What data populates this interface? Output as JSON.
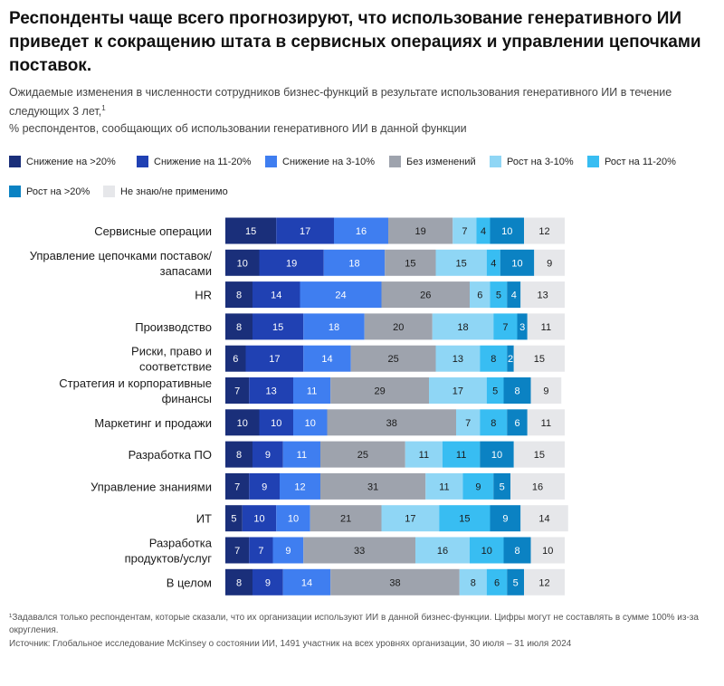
{
  "header": {
    "title": "Респонденты чаще всего прогнозируют, что использование генеративного ИИ приведет к сокращению штата в сервисных операциях и управлении цепочками поставок.",
    "subtitle": "Ожидаемые изменения в численности сотрудников бизнес-функций в результате использования генеративного ИИ в течение следующих 3 лет,",
    "subtitle_mark": "1",
    "subtitle2": "% респондентов, сообщающих об использовании генеративного ИИ в данной функции"
  },
  "footer": {
    "footnote": "¹Задавался только респондентам, которые сказали, что их организации используют ИИ в данной бизнес-функции. Цифры могут не составлять в сумме 100% из-за округления.",
    "source": "Источник: Глобальное исследование McKinsey о состоянии ИИ, 1491 участник на всех уровнях организации, 30 июля – 31 июля 2024"
  },
  "chart_data": {
    "type": "bar",
    "orientation": "horizontal",
    "stacked": true,
    "legend_position": "top",
    "categories": [
      "Сервисные операции",
      "Управление цепочками поставок/ запасами",
      "HR",
      "Производство",
      "Риски, право и соответствие",
      "Стратегия и корпоративные финансы",
      "Маркетинг и продажи",
      "Разработка ПО",
      "Управление знаниями",
      "ИТ",
      "Разработка продуктов/услуг",
      "В целом"
    ],
    "series": [
      {
        "name": "Снижение на >20%",
        "color": "#1a2f7a",
        "label_color": "#ffffff",
        "values": [
          15,
          10,
          8,
          8,
          6,
          7,
          10,
          8,
          7,
          5,
          7,
          8
        ]
      },
      {
        "name": "Снижение на 11-20%",
        "color": "#2041b3",
        "label_color": "#ffffff",
        "values": [
          17,
          19,
          14,
          15,
          17,
          13,
          10,
          9,
          9,
          10,
          7,
          9
        ]
      },
      {
        "name": "Снижение на 3-10%",
        "color": "#3f7ef0",
        "label_color": "#ffffff",
        "values": [
          16,
          18,
          24,
          18,
          14,
          11,
          10,
          11,
          12,
          10,
          9,
          14
        ]
      },
      {
        "name": "Без изменений",
        "color": "#9ea3ad",
        "label_color": "#1b1b1b",
        "values": [
          19,
          15,
          26,
          20,
          25,
          29,
          38,
          25,
          31,
          21,
          33,
          38
        ]
      },
      {
        "name": "Рост на 3-10%",
        "color": "#8fd6f5",
        "label_color": "#1b1b1b",
        "values": [
          7,
          15,
          6,
          18,
          13,
          17,
          7,
          11,
          11,
          17,
          16,
          8
        ]
      },
      {
        "name": "Рост на 11-20%",
        "color": "#38bdf2",
        "label_color": "#1b1b1b",
        "values": [
          4,
          4,
          5,
          7,
          8,
          5,
          8,
          11,
          9,
          15,
          10,
          6
        ]
      },
      {
        "name": "Рост на >20%",
        "color": "#0b82c3",
        "label_color": "#ffffff",
        "values": [
          10,
          10,
          4,
          3,
          2,
          8,
          6,
          10,
          5,
          9,
          8,
          5
        ]
      },
      {
        "name": "Не знаю/не применимо",
        "color": "#e6e7ea",
        "label_color": "#1b1b1b",
        "values": [
          12,
          9,
          13,
          11,
          15,
          9,
          11,
          15,
          16,
          14,
          10,
          12
        ]
      }
    ]
  }
}
